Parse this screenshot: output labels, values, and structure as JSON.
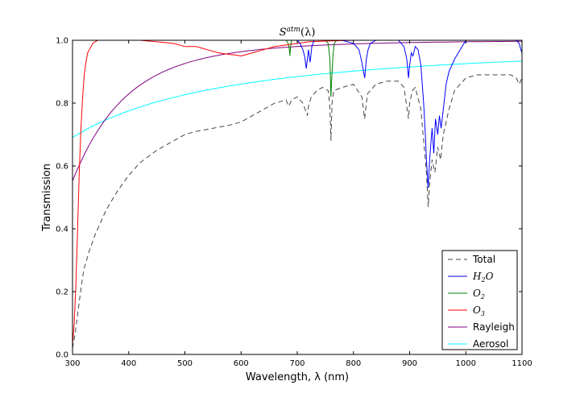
{
  "chart_data": {
    "type": "line",
    "title": "S^{atm}(λ)",
    "title_main": "S",
    "title_sup": "atm",
    "title_arg": "(λ)",
    "xlabel": "Wavelength, λ (nm)",
    "ylabel": "Transmission",
    "xlim": [
      300,
      1100
    ],
    "ylim": [
      0.0,
      1.0
    ],
    "xticks": [
      "300",
      "400",
      "500",
      "600",
      "700",
      "800",
      "900",
      "1000",
      "1100"
    ],
    "yticks": [
      "0.0",
      "0.2",
      "0.4",
      "0.6",
      "0.8",
      "1.0"
    ],
    "grid": false,
    "legend_position": "lower-right",
    "series": [
      {
        "name": "Total",
        "label_main": "Total",
        "label_sub": "",
        "math": false,
        "color": "#444444",
        "dash": "6,4",
        "x": [
          300,
          305,
          310,
          315,
          320,
          330,
          340,
          350,
          360,
          380,
          400,
          420,
          450,
          480,
          500,
          520,
          550,
          580,
          600,
          620,
          640,
          660,
          680,
          685,
          690,
          700,
          710,
          718,
          720,
          725,
          735,
          745,
          755,
          758,
          760,
          762,
          765,
          780,
          800,
          815,
          820,
          823,
          825,
          840,
          860,
          880,
          890,
          898,
          900,
          905,
          910,
          920,
          925,
          930,
          933,
          936,
          940,
          945,
          950,
          955,
          960,
          965,
          970,
          980,
          1000,
          1020,
          1040,
          1060,
          1080,
          1090,
          1095,
          1100
        ],
        "y": [
          0.02,
          0.07,
          0.14,
          0.21,
          0.27,
          0.33,
          0.38,
          0.42,
          0.46,
          0.52,
          0.57,
          0.61,
          0.65,
          0.68,
          0.7,
          0.71,
          0.72,
          0.73,
          0.74,
          0.76,
          0.78,
          0.8,
          0.81,
          0.79,
          0.81,
          0.82,
          0.8,
          0.76,
          0.79,
          0.82,
          0.84,
          0.85,
          0.84,
          0.79,
          0.68,
          0.8,
          0.84,
          0.85,
          0.86,
          0.82,
          0.75,
          0.8,
          0.83,
          0.86,
          0.87,
          0.87,
          0.85,
          0.75,
          0.8,
          0.84,
          0.85,
          0.78,
          0.68,
          0.58,
          0.47,
          0.55,
          0.62,
          0.58,
          0.66,
          0.62,
          0.7,
          0.74,
          0.78,
          0.84,
          0.88,
          0.89,
          0.89,
          0.89,
          0.89,
          0.88,
          0.86,
          0.88
        ]
      },
      {
        "name": "H2O",
        "label_main": "H",
        "label_sub": "2",
        "label_tail": "O",
        "math": true,
        "color": "#0000ff",
        "dash": "",
        "x": [
          640,
          650,
          660,
          670,
          680,
          690,
          700,
          705,
          710,
          713,
          716,
          718,
          720,
          723,
          726,
          730,
          740,
          750,
          760,
          780,
          800,
          810,
          815,
          820,
          823,
          826,
          830,
          840,
          860,
          880,
          890,
          895,
          898,
          900,
          903,
          906,
          910,
          915,
          920,
          925,
          928,
          930,
          933,
          936,
          940,
          943,
          946,
          950,
          953,
          956,
          960,
          965,
          970,
          980,
          1000,
          1020,
          1040,
          1060,
          1080,
          1090,
          1095,
          1098,
          1100
        ],
        "y": [
          1.0,
          1.0,
          1.0,
          1.0,
          1.0,
          1.0,
          1.0,
          0.99,
          0.97,
          0.95,
          0.91,
          0.94,
          0.97,
          0.93,
          0.98,
          1.0,
          1.0,
          1.0,
          1.0,
          1.0,
          0.99,
          0.97,
          0.93,
          0.88,
          0.94,
          0.97,
          0.99,
          1.0,
          1.0,
          1.0,
          0.98,
          0.94,
          0.88,
          0.92,
          0.96,
          0.95,
          0.98,
          0.97,
          0.92,
          0.8,
          0.7,
          0.62,
          0.53,
          0.63,
          0.72,
          0.64,
          0.75,
          0.7,
          0.76,
          0.72,
          0.78,
          0.86,
          0.9,
          0.94,
          1.0,
          1.0,
          1.0,
          1.0,
          1.0,
          1.0,
          0.99,
          0.97,
          0.96
        ]
      },
      {
        "name": "O2",
        "label_main": "O",
        "label_sub": "2",
        "math": true,
        "color": "#008000",
        "dash": "",
        "x": [
          680,
          684,
          686,
          687,
          688,
          690,
          692,
          696,
          750,
          755,
          758,
          760,
          762,
          764,
          766,
          770,
          780,
          800
        ],
        "y": [
          1.0,
          0.99,
          0.97,
          0.95,
          0.98,
          1.0,
          1.0,
          1.0,
          1.0,
          0.99,
          0.94,
          0.82,
          0.9,
          0.96,
          0.99,
          1.0,
          1.0,
          1.0
        ]
      },
      {
        "name": "O3",
        "label_main": "O",
        "label_sub": "3",
        "math": true,
        "color": "#ff0000",
        "dash": "",
        "x": [
          300,
          303,
          306,
          309,
          312,
          315,
          318,
          321,
          324,
          327,
          330,
          333,
          336,
          340,
          345,
          350,
          360,
          380,
          400,
          420,
          450,
          480,
          500,
          520,
          540,
          560,
          580,
          590,
          600,
          610,
          620,
          640,
          660,
          680,
          700,
          720,
          740,
          760,
          780,
          800
        ],
        "y": [
          0.03,
          0.1,
          0.22,
          0.4,
          0.58,
          0.72,
          0.82,
          0.89,
          0.93,
          0.96,
          0.97,
          0.98,
          0.99,
          0.995,
          1.0,
          1.0,
          1.0,
          1.0,
          1.0,
          1.0,
          0.995,
          0.99,
          0.98,
          0.98,
          0.97,
          0.96,
          0.955,
          0.953,
          0.95,
          0.955,
          0.96,
          0.97,
          0.98,
          0.985,
          0.99,
          0.995,
          0.997,
          0.998,
          0.999,
          1.0
        ]
      },
      {
        "name": "Rayleigh",
        "label_main": "Rayleigh",
        "label_sub": "",
        "math": false,
        "color": "#800080",
        "dash": "",
        "func": "rayleigh"
      },
      {
        "name": "Aerosol",
        "label_main": "Aerosol",
        "label_sub": "",
        "math": false,
        "color": "#00ffff",
        "dash": "",
        "func": "aerosol"
      }
    ]
  }
}
